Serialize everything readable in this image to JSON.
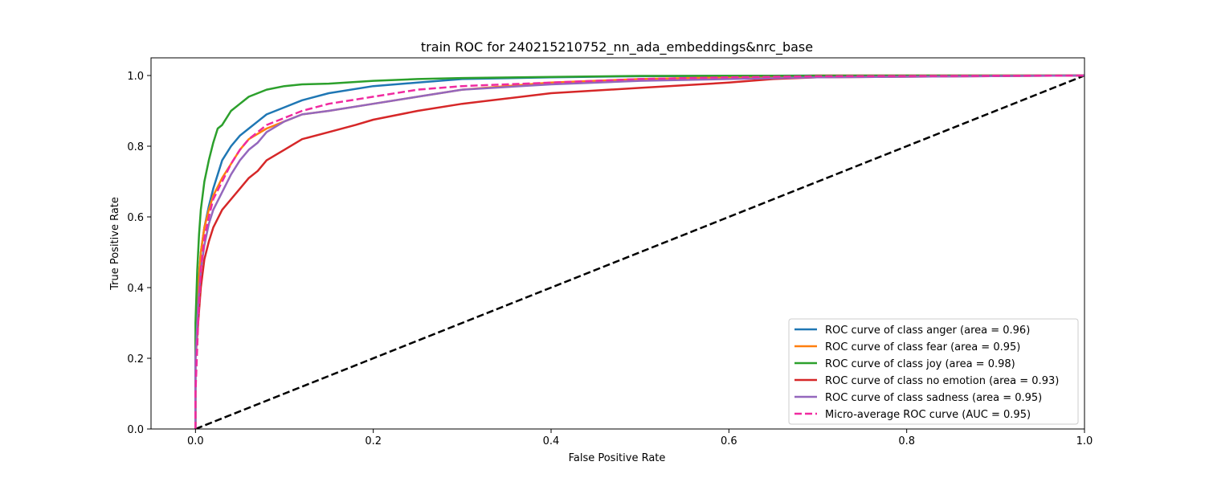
{
  "chart_data": {
    "type": "line",
    "title": "train ROC for 240215210752_nn_ada_embeddings&nrc_base",
    "xlabel": "False Positive Rate",
    "ylabel": "True Positive Rate",
    "xlim": [
      -0.05,
      1.0
    ],
    "ylim": [
      0.0,
      1.05
    ],
    "xticks": [
      0.0,
      0.2,
      0.4,
      0.6,
      0.8,
      1.0
    ],
    "yticks": [
      0.0,
      0.2,
      0.4,
      0.6,
      0.8,
      1.0
    ],
    "xtick_labels": [
      "0.0",
      "0.2",
      "0.4",
      "0.6",
      "0.8",
      "1.0"
    ],
    "ytick_labels": [
      "0.0",
      "0.2",
      "0.4",
      "0.6",
      "0.8",
      "1.0"
    ],
    "grid": false,
    "legend_position": "bottom-right",
    "series": [
      {
        "name": "ROC curve of class anger (area = 0.96)",
        "color": "#1f77b4",
        "dash": "solid",
        "x": [
          0.0,
          0.0,
          0.003,
          0.006,
          0.01,
          0.015,
          0.02,
          0.025,
          0.03,
          0.04,
          0.05,
          0.06,
          0.07,
          0.08,
          0.1,
          0.12,
          0.15,
          0.2,
          0.25,
          0.3,
          0.4,
          0.5,
          0.6,
          0.7,
          1.0
        ],
        "y": [
          0.0,
          0.25,
          0.4,
          0.5,
          0.57,
          0.63,
          0.68,
          0.72,
          0.76,
          0.8,
          0.83,
          0.85,
          0.87,
          0.89,
          0.91,
          0.93,
          0.95,
          0.97,
          0.98,
          0.99,
          0.995,
          0.998,
          0.999,
          1.0,
          1.0
        ]
      },
      {
        "name": "ROC curve of class fear (area = 0.95)",
        "color": "#ff7f0e",
        "dash": "solid",
        "x": [
          0.0,
          0.0,
          0.003,
          0.006,
          0.01,
          0.015,
          0.02,
          0.03,
          0.04,
          0.05,
          0.06,
          0.08,
          0.1,
          0.12,
          0.15,
          0.2,
          0.25,
          0.3,
          0.4,
          0.5,
          0.6,
          0.7,
          1.0
        ],
        "y": [
          0.0,
          0.25,
          0.4,
          0.5,
          0.57,
          0.62,
          0.66,
          0.71,
          0.75,
          0.79,
          0.82,
          0.85,
          0.87,
          0.89,
          0.9,
          0.92,
          0.94,
          0.96,
          0.98,
          0.99,
          0.995,
          1.0,
          1.0
        ]
      },
      {
        "name": "ROC curve of class joy (area = 0.98)",
        "color": "#2ca02c",
        "dash": "solid",
        "x": [
          0.0,
          0.0,
          0.002,
          0.004,
          0.006,
          0.008,
          0.01,
          0.015,
          0.02,
          0.025,
          0.03,
          0.04,
          0.05,
          0.06,
          0.07,
          0.08,
          0.1,
          0.12,
          0.15,
          0.2,
          0.25,
          0.3,
          0.4,
          0.5,
          1.0
        ],
        "y": [
          0.0,
          0.3,
          0.45,
          0.55,
          0.62,
          0.66,
          0.7,
          0.76,
          0.81,
          0.85,
          0.86,
          0.9,
          0.92,
          0.94,
          0.95,
          0.96,
          0.97,
          0.975,
          0.977,
          0.985,
          0.99,
          0.993,
          0.996,
          0.999,
          1.0
        ]
      },
      {
        "name": "ROC curve of class no emotion (area = 0.93)",
        "color": "#d62728",
        "dash": "solid",
        "x": [
          0.0,
          0.0,
          0.003,
          0.006,
          0.01,
          0.015,
          0.02,
          0.03,
          0.04,
          0.05,
          0.06,
          0.07,
          0.08,
          0.1,
          0.12,
          0.15,
          0.18,
          0.2,
          0.25,
          0.3,
          0.35,
          0.4,
          0.5,
          0.6,
          0.65,
          0.7,
          1.0
        ],
        "y": [
          0.0,
          0.2,
          0.3,
          0.4,
          0.48,
          0.53,
          0.57,
          0.62,
          0.65,
          0.68,
          0.71,
          0.73,
          0.76,
          0.79,
          0.82,
          0.84,
          0.86,
          0.875,
          0.9,
          0.92,
          0.935,
          0.95,
          0.965,
          0.98,
          0.99,
          0.995,
          1.0
        ]
      },
      {
        "name": "ROC curve of class sadness (area = 0.95)",
        "color": "#9467bd",
        "dash": "solid",
        "x": [
          0.0,
          0.0,
          0.003,
          0.006,
          0.01,
          0.015,
          0.02,
          0.03,
          0.04,
          0.05,
          0.06,
          0.07,
          0.08,
          0.1,
          0.12,
          0.15,
          0.2,
          0.25,
          0.3,
          0.4,
          0.5,
          0.6,
          0.7,
          1.0
        ],
        "y": [
          0.0,
          0.2,
          0.35,
          0.45,
          0.52,
          0.58,
          0.62,
          0.67,
          0.72,
          0.76,
          0.79,
          0.81,
          0.84,
          0.87,
          0.89,
          0.9,
          0.92,
          0.94,
          0.96,
          0.975,
          0.985,
          0.99,
          0.995,
          1.0
        ]
      },
      {
        "name": "Micro-average ROC curve (AUC = 0.95)",
        "color": "#f02aa0",
        "dash": "dashed",
        "x": [
          0.0,
          0.0,
          0.003,
          0.006,
          0.01,
          0.015,
          0.02,
          0.03,
          0.04,
          0.05,
          0.06,
          0.08,
          0.1,
          0.12,
          0.15,
          0.2,
          0.25,
          0.3,
          0.4,
          0.5,
          0.6,
          0.7,
          1.0
        ],
        "y": [
          0.0,
          0.1,
          0.3,
          0.45,
          0.54,
          0.6,
          0.65,
          0.7,
          0.75,
          0.79,
          0.82,
          0.86,
          0.88,
          0.9,
          0.92,
          0.94,
          0.96,
          0.97,
          0.98,
          0.99,
          0.995,
          0.998,
          1.0
        ]
      },
      {
        "name": "",
        "color": "#000000",
        "dash": "dashed",
        "x": [
          0.0,
          1.0
        ],
        "y": [
          0.0,
          1.0
        ]
      }
    ]
  }
}
